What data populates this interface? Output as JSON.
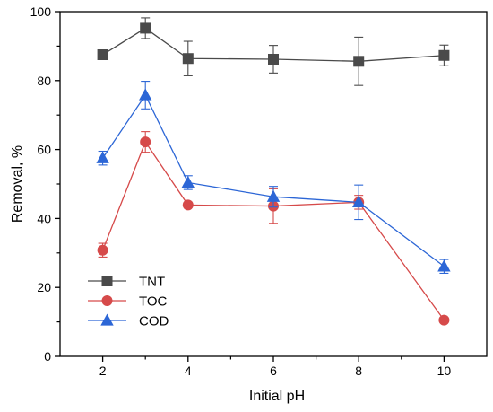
{
  "chart_data": {
    "type": "line",
    "xlabel": "Initial pH",
    "ylabel": "Removal, %",
    "x": [
      2,
      3,
      4,
      6,
      8,
      10
    ],
    "xticks": [
      2,
      4,
      6,
      8,
      10
    ],
    "yticks": [
      0,
      20,
      40,
      60,
      80,
      100
    ],
    "ylim": [
      0,
      100
    ],
    "legend_position": "bottom-left",
    "series": [
      {
        "name": "TNT",
        "color": "#4a4a4a",
        "marker": "square",
        "values": [
          87.5,
          95.2,
          86.4,
          86.2,
          85.6,
          87.3
        ],
        "errors": [
          1.0,
          3.0,
          5.0,
          4.0,
          7.0,
          3.0
        ]
      },
      {
        "name": "TOC",
        "color": "#d64a4a",
        "marker": "circle",
        "values": [
          30.8,
          62.2,
          43.9,
          43.6,
          44.7,
          10.5
        ],
        "errors": [
          2.0,
          3.0,
          0.5,
          5.0,
          2.0,
          0.5
        ]
      },
      {
        "name": "COD",
        "color": "#2c66d6",
        "marker": "triangle",
        "values": [
          57.5,
          75.8,
          50.4,
          46.3,
          44.7,
          26.1
        ],
        "errors": [
          2.0,
          4.0,
          2.0,
          3.0,
          5.0,
          2.0
        ]
      }
    ]
  }
}
